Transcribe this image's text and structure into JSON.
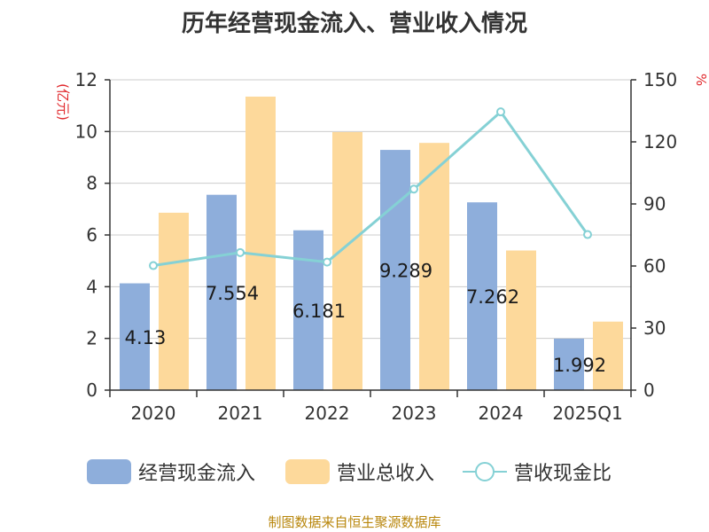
{
  "chart_data": {
    "type": "bar",
    "title": "历年经营现金流入、营业收入情况",
    "categories": [
      "2020",
      "2021",
      "2022",
      "2023",
      "2024",
      "2025Q1"
    ],
    "left_axis": {
      "label": "(亿元)",
      "min": 0,
      "max": 12,
      "ticks": [
        0,
        2,
        4,
        6,
        8,
        10,
        12
      ]
    },
    "right_axis": {
      "label": "%",
      "min": 0,
      "max": 150,
      "ticks": [
        0,
        30,
        60,
        90,
        120,
        150
      ]
    },
    "grid": true,
    "legend_position": "bottom",
    "series": [
      {
        "name": "经营现金流入",
        "type": "bar",
        "axis": "left",
        "color": "#8eaedb",
        "values": [
          4.13,
          7.554,
          6.181,
          9.289,
          7.262,
          1.992
        ],
        "labels": [
          "4.13",
          "7.554",
          "6.181",
          "9.289",
          "7.262",
          "1.992"
        ]
      },
      {
        "name": "营业总收入",
        "type": "bar",
        "axis": "left",
        "color": "#fdd99b",
        "values": [
          6.86,
          11.35,
          9.98,
          9.56,
          5.4,
          2.65
        ]
      },
      {
        "name": "营收现金比",
        "type": "line",
        "axis": "right",
        "color": "#85d1d5",
        "values": [
          60.2,
          66.5,
          61.9,
          97.2,
          134.5,
          75.2
        ]
      }
    ]
  },
  "source": "制图数据来自恒生聚源数据库"
}
